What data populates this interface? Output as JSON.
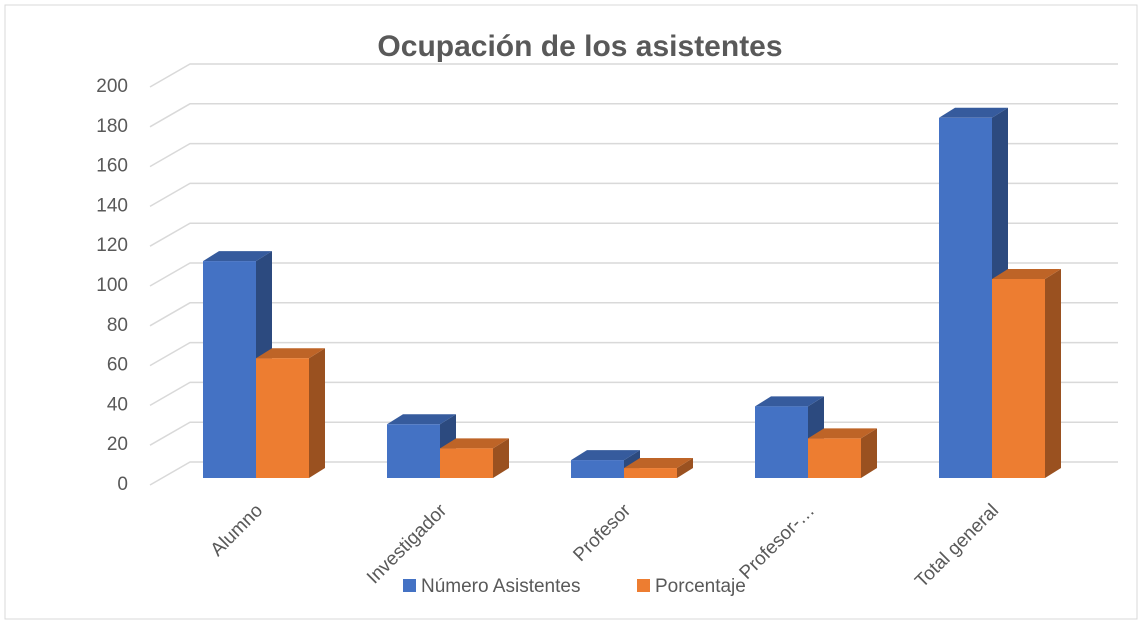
{
  "chart_data": {
    "type": "bar3d",
    "title": "Ocupación de los asistentes",
    "categories": [
      "Alumno",
      "Investigador",
      "Profesor",
      "Profesor-…",
      "Total general"
    ],
    "series": [
      {
        "name": "Número Asistentes",
        "color": "#4472c4",
        "values": [
          109,
          27,
          9,
          36,
          181
        ]
      },
      {
        "name": "Porcentaje",
        "color": "#ed7d31",
        "values": [
          60.2,
          14.9,
          5.0,
          19.9,
          100
        ]
      }
    ],
    "ylim": [
      0,
      200
    ],
    "yticks": [
      0,
      20,
      40,
      60,
      80,
      100,
      120,
      140,
      160,
      180,
      200
    ],
    "grid": true,
    "legend": "bottom"
  }
}
